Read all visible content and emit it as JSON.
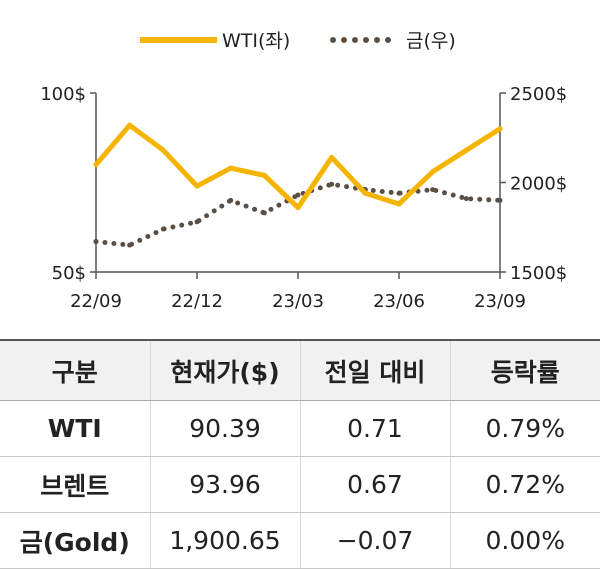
{
  "chart_data": {
    "type": "line",
    "legend": [
      {
        "label": "WTI(좌)",
        "color": "#f5b400",
        "style": "solid"
      },
      {
        "label": "금(우)",
        "color": "#5b4f44",
        "style": "dotted"
      }
    ],
    "legend_position": "top-center",
    "x_ticks": [
      "22/09",
      "22/12",
      "23/03",
      "23/06",
      "23/09"
    ],
    "y_left": {
      "ticks": [
        "100$",
        "50$"
      ],
      "range": [
        50,
        100
      ]
    },
    "y_right": {
      "ticks": [
        "2500$",
        "2000$",
        "1500$"
      ],
      "range": [
        1500,
        2500
      ]
    },
    "grid": false,
    "series": [
      {
        "name": "WTI(좌)",
        "axis": "left",
        "color": "#f5b400",
        "x": [
          "22/09",
          "22/10",
          "22/11",
          "22/12",
          "23/01",
          "23/02",
          "23/03",
          "23/04",
          "23/05",
          "23/06",
          "23/07",
          "23/08",
          "23/09"
        ],
        "values": [
          80,
          91,
          84,
          74,
          79,
          77,
          68,
          82,
          72,
          69,
          78,
          84,
          90
        ]
      },
      {
        "name": "금(우)",
        "axis": "right",
        "color": "#5b4f44",
        "x": [
          "22/09",
          "22/10",
          "22/11",
          "22/12",
          "23/01",
          "23/02",
          "23/03",
          "23/04",
          "23/05",
          "23/06",
          "23/07",
          "23/08",
          "23/09"
        ],
        "values": [
          1670,
          1650,
          1740,
          1780,
          1900,
          1830,
          1930,
          1990,
          1960,
          1940,
          1960,
          1910,
          1900
        ]
      }
    ]
  },
  "table": {
    "headers": [
      "구분",
      "현재가($)",
      "전일 대비",
      "등락률"
    ],
    "rows": [
      [
        "WTI",
        "90.39",
        "0.71",
        "0.79%"
      ],
      [
        "브렌트",
        "93.96",
        "0.67",
        "0.72%"
      ],
      [
        "금(Gold)",
        "1,900.65",
        "−0.07",
        "0.00%"
      ]
    ]
  }
}
